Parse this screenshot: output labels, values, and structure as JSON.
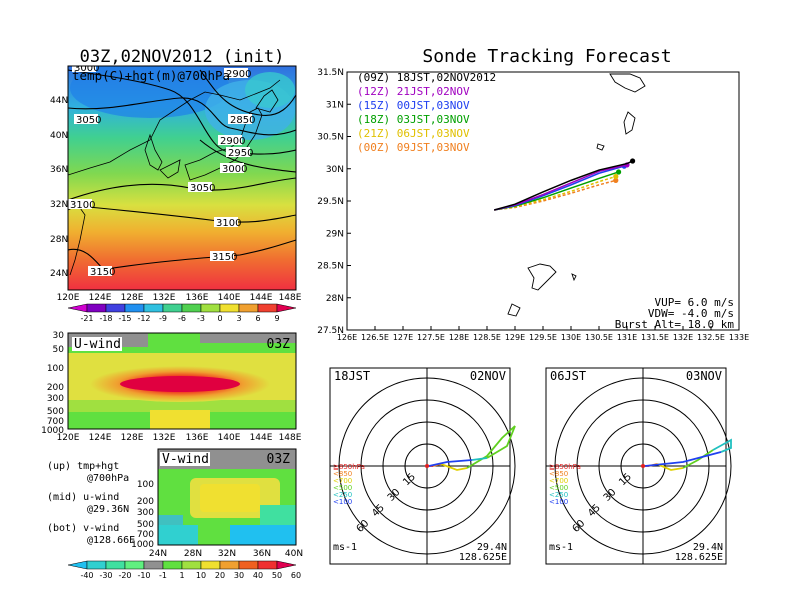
{
  "left_map": {
    "title": "03Z,02NOV2012 (init)",
    "field_label": "temp(C)+hgt(m)@700hPa",
    "contour_labels": [
      "3000",
      "2900",
      "3050",
      "2850",
      "2900",
      "2950",
      "3000",
      "3050",
      "3100",
      "3100",
      "3150",
      "3150"
    ],
    "lat_ticks": [
      "44N",
      "40N",
      "36N",
      "32N",
      "28N",
      "24N"
    ],
    "lon_ticks": [
      "120E",
      "124E",
      "128E",
      "132E",
      "136E",
      "140E",
      "144E",
      "148E"
    ],
    "colorbar_labels": [
      "-21",
      "-18",
      "-15",
      "-12",
      "-9",
      "-6",
      "-3",
      "0",
      "3",
      "6",
      "9"
    ],
    "colorbar_colors": [
      "#d000d0",
      "#8000c0",
      "#4040e0",
      "#2090f0",
      "#30c0e0",
      "#40d090",
      "#50d050",
      "#a0e040",
      "#f0e030",
      "#f0a030",
      "#f04030",
      "#e00050"
    ]
  },
  "uwind": {
    "label": "U-wind",
    "time": "03Z",
    "p_ticks": [
      "30",
      "50",
      "100",
      "200",
      "300",
      "500",
      "700",
      "1000"
    ],
    "lon_ticks": [
      "120E",
      "124E",
      "128E",
      "132E",
      "136E",
      "140E",
      "144E",
      "148E"
    ]
  },
  "vwind": {
    "label": "V-wind",
    "time": "03Z",
    "p_ticks": [
      "100",
      "200",
      "300",
      "500",
      "700",
      "1000"
    ],
    "lat_ticks": [
      "24N",
      "28N",
      "32N",
      "36N",
      "40N"
    ]
  },
  "notes": {
    "up": "(up) tmp+hgt",
    "up2": "@700hPa",
    "mid": "(mid) u-wind",
    "mid2": "@29.36N",
    "bot": "(bot) v-wind",
    "bot2": "@128.66E"
  },
  "wind_colorbar": {
    "labels": [
      "-40",
      "-30",
      "-20",
      "-10",
      "-1",
      "1",
      "10",
      "20",
      "30",
      "40",
      "50",
      "60"
    ],
    "colors": [
      "#20c0f0",
      "#30d0d0",
      "#40e0a0",
      "#60f080",
      "#909090",
      "#60e040",
      "#a0e040",
      "#f0e030",
      "#f0a030",
      "#f06020",
      "#f03030",
      "#e00050"
    ]
  },
  "forecast": {
    "title": "Sonde Tracking Forecast",
    "legend": [
      {
        "text": "(09Z) 18JST,02NOV2012",
        "color": "#000000"
      },
      {
        "text": "(12Z) 21JST,02NOV",
        "color": "#a000c0"
      },
      {
        "text": "(15Z) 00JST,03NOV",
        "color": "#2040f0"
      },
      {
        "text": "(18Z) 03JST,03NOV",
        "color": "#00a000"
      },
      {
        "text": "(21Z) 06JST,03NOV",
        "color": "#e0c000"
      },
      {
        "text": "(00Z) 09JST,03NOV",
        "color": "#f08020"
      }
    ],
    "lat_ticks": [
      "31.5N",
      "31N",
      "30.5N",
      "30N",
      "29.5N",
      "29N",
      "28.5N",
      "28N",
      "27.5N"
    ],
    "lon_ticks": [
      "126E",
      "126.5E",
      "127E",
      "127.5E",
      "128E",
      "128.5E",
      "129E",
      "129.5E",
      "130E",
      "130.5E",
      "131E",
      "131.5E",
      "132E",
      "132.5E",
      "133E"
    ],
    "params": [
      "VUP= 6.0 m/s",
      "VDW= -4.0 m/s",
      "Burst Alt= 18.0 km"
    ]
  },
  "chart_data": {
    "type": "line",
    "title": "Sonde Tracking Forecast",
    "xlim": [
      126,
      133
    ],
    "ylim": [
      27.5,
      31.5
    ],
    "series": [
      {
        "name": "(09Z) 18JST,02NOV2012",
        "color": "#000000",
        "x": [
          128.63,
          129.0,
          129.5,
          130.0,
          130.5,
          131.0,
          131.1
        ],
        "y": [
          29.36,
          29.45,
          29.64,
          29.82,
          29.98,
          30.08,
          30.12
        ]
      },
      {
        "name": "(12Z) 21JST,02NOV",
        "color": "#a000c0",
        "x": [
          128.63,
          129.0,
          129.5,
          130.0,
          130.5,
          131.0
        ],
        "y": [
          29.36,
          29.44,
          29.6,
          29.78,
          29.96,
          30.06
        ]
      },
      {
        "name": "(15Z) 00JST,03NOV",
        "color": "#2040f0",
        "x": [
          128.63,
          129.0,
          129.5,
          130.0,
          130.5,
          130.95
        ],
        "y": [
          29.36,
          29.43,
          29.58,
          29.75,
          29.93,
          30.04
        ]
      },
      {
        "name": "(18Z) 03JST,03NOV",
        "color": "#00a000",
        "x": [
          128.63,
          129.0,
          129.5,
          130.0,
          130.5,
          130.85
        ],
        "y": [
          29.36,
          29.42,
          29.55,
          29.7,
          29.85,
          29.95
        ]
      },
      {
        "name": "(21Z) 06JST,03NOV",
        "color": "#e0c000",
        "x": [
          128.63,
          129.0,
          129.5,
          130.0,
          130.5,
          130.8
        ],
        "y": [
          29.36,
          29.41,
          29.52,
          29.65,
          29.8,
          29.88
        ]
      },
      {
        "name": "(00Z) 09JST,03NOV",
        "color": "#f08020",
        "x": [
          128.63,
          129.0,
          129.5,
          130.0,
          130.5,
          130.8
        ],
        "y": [
          29.36,
          29.4,
          29.5,
          29.62,
          29.75,
          29.82
        ]
      }
    ]
  },
  "hodo_left": {
    "left": "18JST",
    "right": "02NOV",
    "ring_labels": [
      "15",
      "30",
      "45",
      "60"
    ],
    "levels": [
      {
        "text": "≧850hPa",
        "color": "#e02020"
      },
      {
        "text": "<850",
        "color": "#f08020"
      },
      {
        "text": "<700",
        "color": "#e0d000"
      },
      {
        "text": "<500",
        "color": "#60d020"
      },
      {
        "text": "<250",
        "color": "#20c0c0"
      },
      {
        "text": "<100",
        "color": "#2040f0"
      }
    ],
    "unit": "ms-1",
    "lat": "29.4N",
    "lon": "128.625E"
  },
  "hodo_right": {
    "left": "06JST",
    "right": "03NOV",
    "ring_labels": [
      "15",
      "30",
      "45",
      "60"
    ],
    "levels": [
      {
        "text": "≧850hPa",
        "color": "#e02020"
      },
      {
        "text": "<850",
        "color": "#f08020"
      },
      {
        "text": "<700",
        "color": "#e0d000"
      },
      {
        "text": "<500",
        "color": "#60d020"
      },
      {
        "text": "<250",
        "color": "#20c0c0"
      },
      {
        "text": "<100",
        "color": "#2040f0"
      }
    ],
    "unit": "ms-1",
    "lat": "29.4N",
    "lon": "128.625E"
  }
}
